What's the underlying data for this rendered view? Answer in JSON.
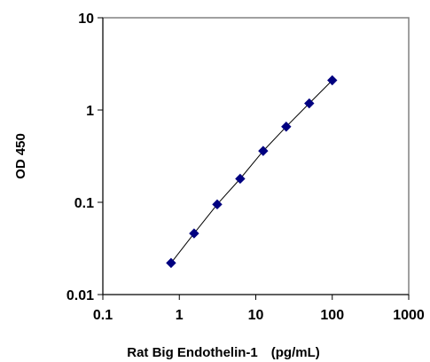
{
  "chart_data": {
    "type": "scatter",
    "title": "",
    "xlabel": "Rat Big Endothelin-1　(pg/mL)",
    "ylabel": "OD 450",
    "x_scale": "log",
    "y_scale": "log",
    "xlim": [
      0.1,
      1000
    ],
    "ylim": [
      0.01,
      10
    ],
    "x_ticks": [
      "0.1",
      "1",
      "10",
      "100",
      "1000"
    ],
    "y_ticks": [
      "0.01",
      "0.1",
      "1",
      "10"
    ],
    "grid": false,
    "legend": "none",
    "marker": "diamond",
    "marker_color": "#000080",
    "line_color": "#000000",
    "series": [
      {
        "x": [
          0.78,
          1.56,
          3.13,
          6.25,
          12.5,
          25,
          50,
          100
        ],
        "y": [
          0.022,
          0.046,
          0.095,
          0.18,
          0.36,
          0.66,
          1.18,
          2.1
        ]
      }
    ]
  }
}
